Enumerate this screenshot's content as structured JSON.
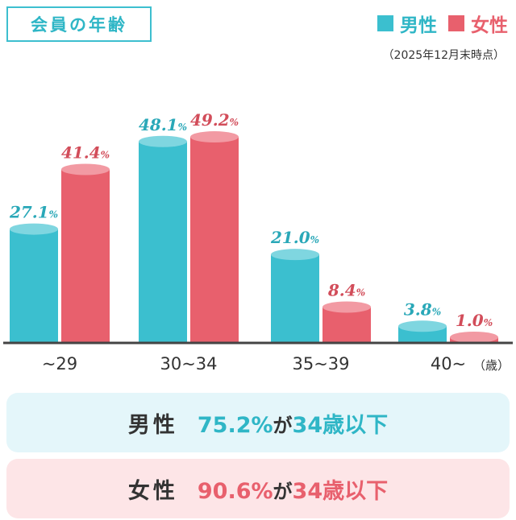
{
  "header": {
    "title": "会員の年齢",
    "note": "（2025年12月末時点）"
  },
  "legend": [
    {
      "label": "男性",
      "color": "#3bbfcf"
    },
    {
      "label": "女性",
      "color": "#e8606d"
    }
  ],
  "chart_data": {
    "type": "bar",
    "categories": [
      "~29",
      "30~34",
      "35~39",
      "40~"
    ],
    "unit_label": "（歳）",
    "series": [
      {
        "name": "男性",
        "values": [
          27.1,
          48.1,
          21.0,
          3.8
        ],
        "labels": [
          "27.1",
          "48.1",
          "21.0",
          "3.8"
        ],
        "color": "#3bbfcf"
      },
      {
        "name": "女性",
        "values": [
          41.4,
          49.2,
          8.4,
          1.0
        ],
        "labels": [
          "41.4",
          "49.2",
          "8.4",
          "1.0"
        ],
        "color": "#e8606d"
      }
    ],
    "value_suffix": "%",
    "ylim": [
      0,
      55
    ]
  },
  "summary": {
    "male": {
      "label": "男性",
      "pct": "75.2%",
      "ga": "が",
      "age": "34歳以下"
    },
    "female": {
      "label": "女性",
      "pct": "90.6%",
      "ga": "が",
      "age": "34歳以下"
    }
  }
}
